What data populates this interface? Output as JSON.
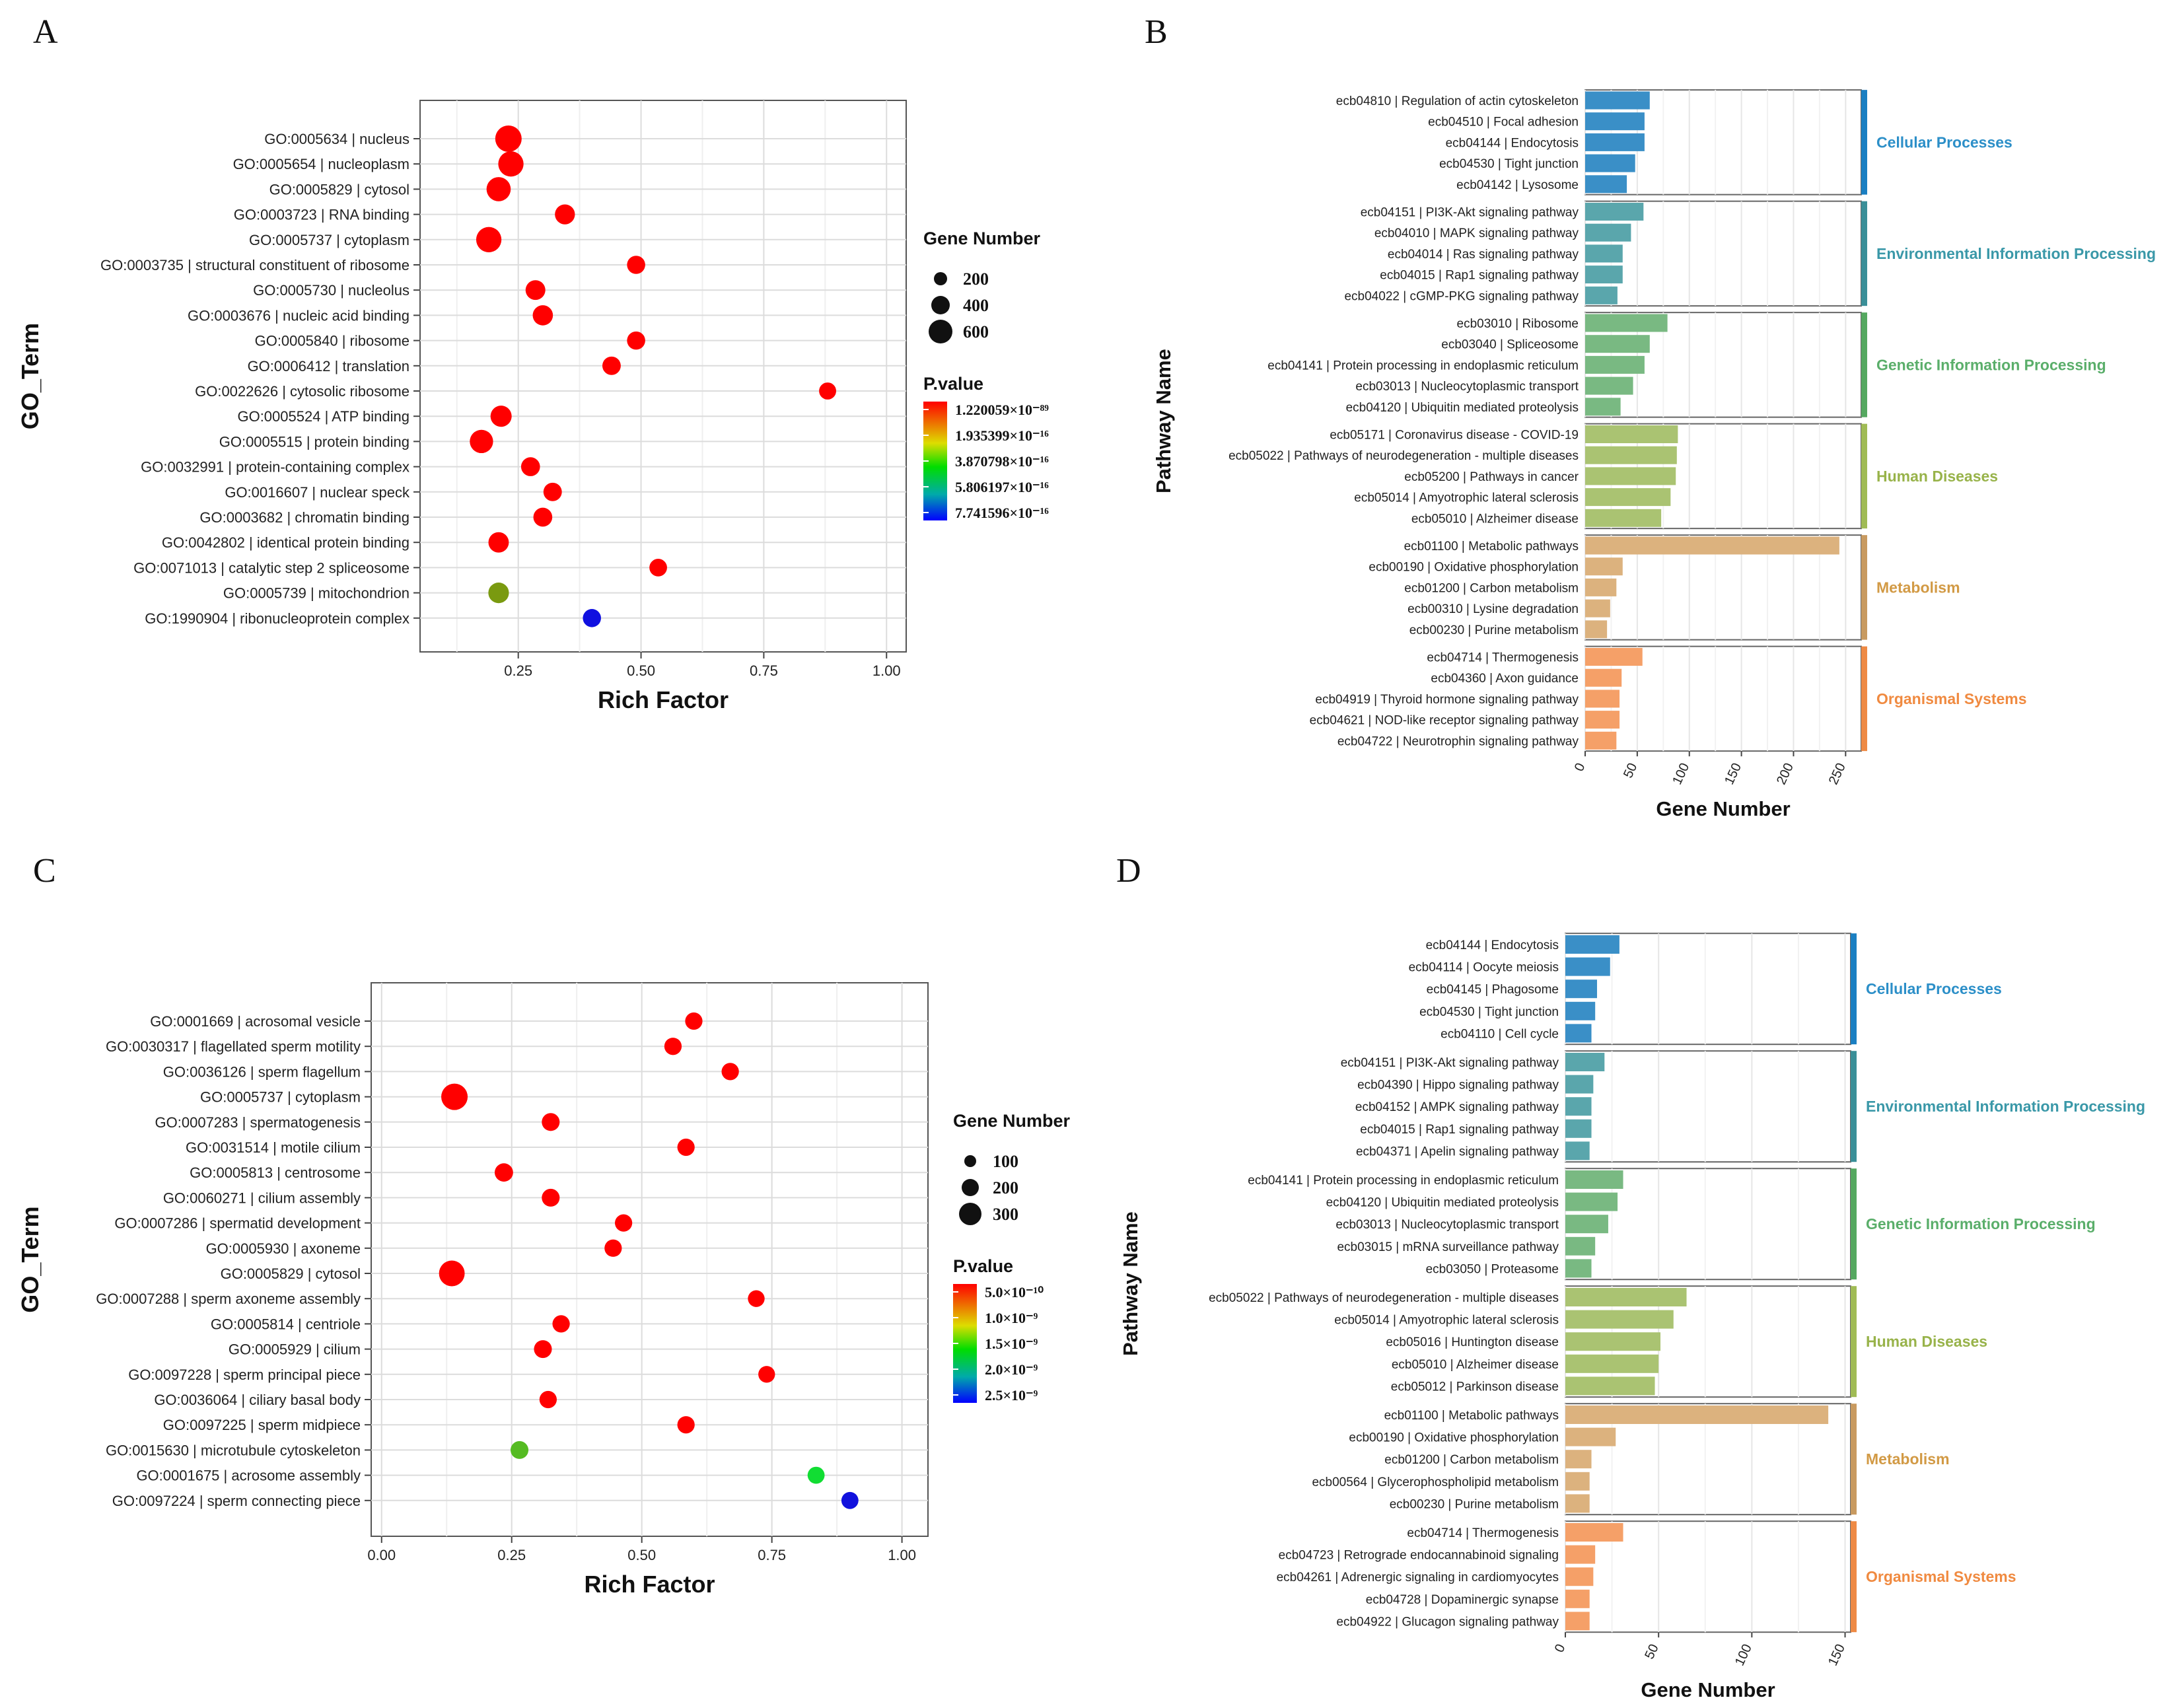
{
  "figure": {
    "panels": [
      {
        "id": "A",
        "label": "A"
      },
      {
        "id": "B",
        "label": "B"
      },
      {
        "id": "C",
        "label": "C"
      },
      {
        "id": "D",
        "label": "D"
      }
    ]
  },
  "chart_data": [
    {
      "panel": "A",
      "type": "scatter",
      "xlabel": "Rich Factor",
      "ylabel": "GO_Term",
      "xlim": [
        0.05,
        1.04
      ],
      "xticks": [
        "0.25",
        "0.50",
        "0.75",
        "1.00"
      ],
      "grid": true,
      "size_legend": {
        "title": "Gene Number",
        "entries": [
          "200",
          "400",
          "600"
        ]
      },
      "color_legend": {
        "title": "P.value",
        "labels": [
          "1.220059×10⁻⁸⁹",
          "1.935399×10⁻¹⁶",
          "3.870798×10⁻¹⁶",
          "5.806197×10⁻¹⁶",
          "7.741596×10⁻¹⁶"
        ]
      },
      "points": [
        {
          "term": "GO:0005634 | nucleus",
          "x": 0.23,
          "size": 650,
          "color": "#ff0000"
        },
        {
          "term": "GO:0005654 | nucleoplasm",
          "x": 0.235,
          "size": 560,
          "color": "#ff0000"
        },
        {
          "term": "GO:0005829 | cytosol",
          "x": 0.21,
          "size": 480,
          "color": "#ff0000"
        },
        {
          "term": "GO:0003723 | RNA binding",
          "x": 0.345,
          "size": 230,
          "color": "#ff0000"
        },
        {
          "term": "GO:0005737 | cytoplasm",
          "x": 0.19,
          "size": 560,
          "color": "#ff0000"
        },
        {
          "term": "GO:0003735 | structural constituent of ribosome",
          "x": 0.49,
          "size": 150,
          "color": "#ff0000"
        },
        {
          "term": "GO:0005730 | nucleolus",
          "x": 0.285,
          "size": 220,
          "color": "#ff0000"
        },
        {
          "term": "GO:0003676 | nucleic acid binding",
          "x": 0.3,
          "size": 240,
          "color": "#ff0000"
        },
        {
          "term": "GO:0005840 | ribosome",
          "x": 0.49,
          "size": 150,
          "color": "#ff0000"
        },
        {
          "term": "GO:0006412 | translation",
          "x": 0.44,
          "size": 160,
          "color": "#ff0000"
        },
        {
          "term": "GO:0022626 | cytosolic ribosome",
          "x": 0.88,
          "size": 110,
          "color": "#ff0000"
        },
        {
          "term": "GO:0005524 | ATP binding",
          "x": 0.215,
          "size": 290,
          "color": "#ff0000"
        },
        {
          "term": "GO:0005515 | protein binding",
          "x": 0.175,
          "size": 420,
          "color": "#ff0000"
        },
        {
          "term": "GO:0032991 | protein-containing complex",
          "x": 0.275,
          "size": 180,
          "color": "#ff0000"
        },
        {
          "term": "GO:0016607 | nuclear speck",
          "x": 0.32,
          "size": 160,
          "color": "#ff0000"
        },
        {
          "term": "GO:0003682 | chromatin binding",
          "x": 0.3,
          "size": 180,
          "color": "#ff0000"
        },
        {
          "term": "GO:0042802 | identical protein binding",
          "x": 0.21,
          "size": 250,
          "color": "#ff0000"
        },
        {
          "term": "GO:0071013 | catalytic step 2 spliceosome",
          "x": 0.535,
          "size": 130,
          "color": "#ff0000"
        },
        {
          "term": "GO:0005739 | mitochondrion",
          "x": 0.21,
          "size": 260,
          "color": "#7a9a10"
        },
        {
          "term": "GO:1990904 | ribonucleoprotein complex",
          "x": 0.4,
          "size": 150,
          "color": "#1010e0"
        }
      ]
    },
    {
      "panel": "B",
      "type": "bar",
      "orientation": "horizontal",
      "xlabel": "Gene Number",
      "ylabel": "Pathway Name",
      "xlim": [
        0,
        265
      ],
      "xticks": [
        "0",
        "50",
        "100",
        "150",
        "200",
        "250"
      ],
      "tick_values": [
        0,
        50,
        100,
        150,
        200,
        250
      ],
      "groups": [
        {
          "name": "Cellular Processes",
          "color": "#3a8fc7",
          "labelColor": "#2c8fc8",
          "stripColor": "#1a7fc2",
          "items": [
            [
              "ecb04810 | Regulation of actin cytoskeleton",
              62
            ],
            [
              "ecb04510 | Focal adhesion",
              57
            ],
            [
              "ecb04144 | Endocytosis",
              57
            ],
            [
              "ecb04530 | Tight junction",
              48
            ],
            [
              "ecb04142 | Lysosome",
              40
            ]
          ]
        },
        {
          "name": "Environmental Information Processing",
          "color": "#5aa6ac",
          "labelColor": "#3a98a8",
          "stripColor": "#3a8f98",
          "items": [
            [
              "ecb04151 | PI3K-Akt signaling pathway",
              56
            ],
            [
              "ecb04010 | MAPK signaling pathway",
              44
            ],
            [
              "ecb04014 | Ras signaling pathway",
              36
            ],
            [
              "ecb04015 | Rap1 signaling pathway",
              36
            ],
            [
              "ecb04022 | cGMP-PKG signaling pathway",
              31
            ]
          ]
        },
        {
          "name": "Genetic Information Processing",
          "color": "#79b982",
          "labelColor": "#5aae6a",
          "stripColor": "#55a860",
          "items": [
            [
              "ecb03010 | Ribosome",
              79
            ],
            [
              "ecb03040 | Spliceosome",
              62
            ],
            [
              "ecb04141 | Protein processing in endoplasmic reticulum",
              57
            ],
            [
              "ecb03013 | Nucleocytoplasmic transport",
              46
            ],
            [
              "ecb04120 | Ubiquitin mediated proteolysis",
              34
            ]
          ]
        },
        {
          "name": "Human Diseases",
          "color": "#aac372",
          "labelColor": "#98b34a",
          "stripColor": "#a0bb55",
          "items": [
            [
              "ecb05171 | Coronavirus disease - COVID-19",
              89
            ],
            [
              "ecb05022 | Pathways of neurodegeneration - multiple diseases",
              88
            ],
            [
              "ecb05200 | Pathways in cancer",
              87
            ],
            [
              "ecb05014 | Amyotrophic lateral sclerosis",
              82
            ],
            [
              "ecb05010 | Alzheimer disease",
              73
            ]
          ]
        },
        {
          "name": "Metabolism",
          "color": "#dcb27e",
          "labelColor": "#d29a45",
          "stripColor": "#c89a60",
          "items": [
            [
              "ecb01100 | Metabolic pathways",
              244
            ],
            [
              "ecb00190 | Oxidative phosphorylation",
              36
            ],
            [
              "ecb01200 | Carbon metabolism",
              30
            ],
            [
              "ecb00310 | Lysine degradation",
              24
            ],
            [
              "ecb00230 | Purine metabolism",
              21
            ]
          ]
        },
        {
          "name": "Organismal Systems",
          "color": "#f5a068",
          "labelColor": "#f08a40",
          "stripColor": "#ee8a45",
          "items": [
            [
              "ecb04714 | Thermogenesis",
              55
            ],
            [
              "ecb04360 | Axon guidance",
              35
            ],
            [
              "ecb04919 | Thyroid hormone signaling pathway",
              33
            ],
            [
              "ecb04621 | NOD-like receptor signaling pathway",
              33
            ],
            [
              "ecb04722 | Neurotrophin signaling pathway",
              30
            ]
          ]
        }
      ]
    },
    {
      "panel": "C",
      "type": "scatter",
      "xlabel": "Rich Factor",
      "ylabel": "GO_Term",
      "xlim": [
        -0.02,
        1.05
      ],
      "xticks": [
        "0.00",
        "0.25",
        "0.50",
        "0.75",
        "1.00"
      ],
      "grid": true,
      "size_legend": {
        "title": "Gene Number",
        "entries": [
          "100",
          "200",
          "300"
        ]
      },
      "color_legend": {
        "title": "P.value",
        "labels": [
          "5.0×10⁻¹⁰",
          "1.0×10⁻⁹",
          "1.5×10⁻⁹",
          "2.0×10⁻⁹",
          "2.5×10⁻⁹"
        ]
      },
      "points": [
        {
          "term": "GO:0001669 | acrosomal vesicle",
          "x": 0.6,
          "size": 60,
          "color": "#ff0000"
        },
        {
          "term": "GO:0030317 | flagellated sperm motility",
          "x": 0.56,
          "size": 60,
          "color": "#ff0000"
        },
        {
          "term": "GO:0036126 | sperm flagellum",
          "x": 0.67,
          "size": 60,
          "color": "#ff0000"
        },
        {
          "term": "GO:0005737 | cytoplasm",
          "x": 0.14,
          "size": 330,
          "color": "#ff0000"
        },
        {
          "term": "GO:0007283 | spermatogenesis",
          "x": 0.325,
          "size": 70,
          "color": "#ff0000"
        },
        {
          "term": "GO:0031514 | motile cilium",
          "x": 0.585,
          "size": 60,
          "color": "#ff0000"
        },
        {
          "term": "GO:0005813 | centrosome",
          "x": 0.235,
          "size": 80,
          "color": "#ff0000"
        },
        {
          "term": "GO:0060271 | cilium assembly",
          "x": 0.325,
          "size": 70,
          "color": "#ff0000"
        },
        {
          "term": "GO:0007286 | spermatid development",
          "x": 0.465,
          "size": 60,
          "color": "#ff0000"
        },
        {
          "term": "GO:0005930 | axoneme",
          "x": 0.445,
          "size": 60,
          "color": "#ff0000"
        },
        {
          "term": "GO:0005829 | cytosol",
          "x": 0.135,
          "size": 300,
          "color": "#ff0000"
        },
        {
          "term": "GO:0007288 | sperm axoneme assembly",
          "x": 0.72,
          "size": 50,
          "color": "#ff0000"
        },
        {
          "term": "GO:0005814 | centriole",
          "x": 0.345,
          "size": 60,
          "color": "#ff0000"
        },
        {
          "term": "GO:0005929 | cilium",
          "x": 0.31,
          "size": 70,
          "color": "#ff0000"
        },
        {
          "term": "GO:0097228 | sperm principal piece",
          "x": 0.74,
          "size": 50,
          "color": "#ff0000"
        },
        {
          "term": "GO:0036064 | ciliary basal body",
          "x": 0.32,
          "size": 60,
          "color": "#ff0000"
        },
        {
          "term": "GO:0097225 | sperm midpiece",
          "x": 0.585,
          "size": 60,
          "color": "#ff0000"
        },
        {
          "term": "GO:0015630 | microtubule cytoskeleton",
          "x": 0.265,
          "size": 70,
          "color": "#55bb22"
        },
        {
          "term": "GO:0001675 | acrosome assembly",
          "x": 0.835,
          "size": 55,
          "color": "#11dd33"
        },
        {
          "term": "GO:0097224 | sperm connecting piece",
          "x": 0.9,
          "size": 55,
          "color": "#1111dd"
        }
      ]
    },
    {
      "panel": "D",
      "type": "bar",
      "orientation": "horizontal",
      "xlabel": "Gene Number",
      "ylabel": "Pathway Name",
      "xlim": [
        0,
        153
      ],
      "xticks": [
        "0",
        "50",
        "100",
        "150"
      ],
      "tick_values": [
        0,
        50,
        100,
        150
      ],
      "groups": [
        {
          "name": "Cellular Processes",
          "color": "#3a8fc7",
          "labelColor": "#2c8fc8",
          "stripColor": "#1a7fc2",
          "items": [
            [
              "ecb04144 | Endocytosis",
              29
            ],
            [
              "ecb04114 | Oocyte meiosis",
              24
            ],
            [
              "ecb04145 | Phagosome",
              17
            ],
            [
              "ecb04530 | Tight junction",
              16
            ],
            [
              "ecb04110 | Cell cycle",
              14
            ]
          ]
        },
        {
          "name": "Environmental Information Processing",
          "color": "#5aa6ac",
          "labelColor": "#3a98a8",
          "stripColor": "#3a8f98",
          "items": [
            [
              "ecb04151 | PI3K-Akt signaling pathway",
              21
            ],
            [
              "ecb04390 | Hippo signaling pathway",
              15
            ],
            [
              "ecb04152 | AMPK signaling pathway",
              14
            ],
            [
              "ecb04015 | Rap1 signaling pathway",
              14
            ],
            [
              "ecb04371 | Apelin signaling pathway",
              13
            ]
          ]
        },
        {
          "name": "Genetic Information Processing",
          "color": "#79b982",
          "labelColor": "#5aae6a",
          "stripColor": "#55a860",
          "items": [
            [
              "ecb04141 | Protein processing in endoplasmic reticulum",
              31
            ],
            [
              "ecb04120 | Ubiquitin mediated proteolysis",
              28
            ],
            [
              "ecb03013 | Nucleocytoplasmic transport",
              23
            ],
            [
              "ecb03015 | mRNA surveillance pathway",
              16
            ],
            [
              "ecb03050 | Proteasome",
              14
            ]
          ]
        },
        {
          "name": "Human Diseases",
          "color": "#aac372",
          "labelColor": "#98b34a",
          "stripColor": "#a0bb55",
          "items": [
            [
              "ecb05022 | Pathways of neurodegeneration - multiple diseases",
              65
            ],
            [
              "ecb05014 | Amyotrophic lateral sclerosis",
              58
            ],
            [
              "ecb05016 | Huntington disease",
              51
            ],
            [
              "ecb05010 | Alzheimer disease",
              50
            ],
            [
              "ecb05012 | Parkinson disease",
              48
            ]
          ]
        },
        {
          "name": "Metabolism",
          "color": "#dcb27e",
          "labelColor": "#d29a45",
          "stripColor": "#c89a60",
          "items": [
            [
              "ecb01100 | Metabolic pathways",
              141
            ],
            [
              "ecb00190 | Oxidative phosphorylation",
              27
            ],
            [
              "ecb01200 | Carbon metabolism",
              14
            ],
            [
              "ecb00564 | Glycerophospholipid metabolism",
              13
            ],
            [
              "ecb00230 | Purine metabolism",
              13
            ]
          ]
        },
        {
          "name": "Organismal Systems",
          "color": "#f5a068",
          "labelColor": "#f08a40",
          "stripColor": "#ee8a45",
          "items": [
            [
              "ecb04714 | Thermogenesis",
              31
            ],
            [
              "ecb04723 | Retrograde endocannabinoid signaling",
              16
            ],
            [
              "ecb04261 | Adrenergic signaling in cardiomyocytes",
              15
            ],
            [
              "ecb04728 | Dopaminergic synapse",
              13
            ],
            [
              "ecb04922 | Glucagon signaling pathway",
              13
            ]
          ]
        }
      ]
    }
  ]
}
